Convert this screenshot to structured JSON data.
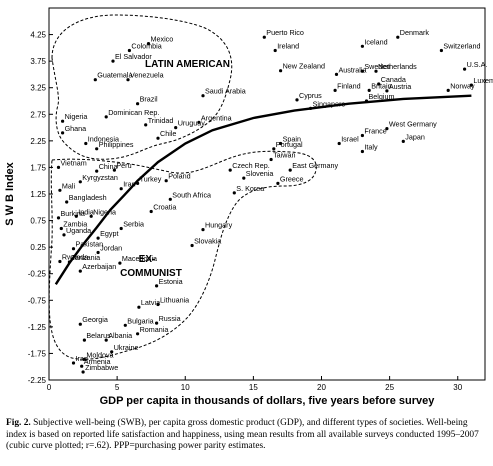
{
  "figure": {
    "caption_label": "Fig. 2.",
    "caption_text": "Subjective well-being (SWB), per capita gross domestic product (GDP), and different types of societies. Well-being index is based on reported life satisfaction and happiness, using mean results from all available surveys conducted 1995–2007 (cubic curve plotted; r=.62). PPP=purchasing power parity estimates."
  },
  "chart_data": {
    "type": "scatter",
    "xlabel": "GDP per capita in thousands of dollars, five years before survey",
    "ylabel": "S W B  Index",
    "xlim": [
      0,
      32
    ],
    "ylim": [
      -2.25,
      4.75
    ],
    "x_ticks": [
      "0",
      "5",
      "10",
      "15",
      "20",
      "25",
      "30"
    ],
    "y_ticks": [
      "-2.25",
      "-1.75",
      "-1.25",
      "-0.75",
      "-0.25",
      "0.25",
      "0.75",
      "1.25",
      "1.75",
      "2.25",
      "2.75",
      "3.25",
      "3.75",
      "4.25"
    ],
    "grid": false,
    "region_labels": [
      "LATIN AMERICAN",
      "EX-COMMUNIST"
    ],
    "curve": {
      "fit": "cubic",
      "r": 0.62,
      "x": [
        0.5,
        1.5,
        2.5,
        3.5,
        4.5,
        5.5,
        6.5,
        8,
        10,
        12,
        15,
        18,
        22,
        26,
        31
      ],
      "y": [
        -0.45,
        -0.05,
        0.3,
        0.62,
        0.95,
        1.22,
        1.5,
        1.85,
        2.2,
        2.45,
        2.68,
        2.82,
        2.95,
        3.04,
        3.1
      ]
    },
    "points": [
      {
        "label": "Puerto Rico",
        "x": 15.8,
        "y": 4.2
      },
      {
        "label": "Ireland",
        "x": 16.6,
        "y": 3.95
      },
      {
        "label": "Iceland",
        "x": 23.0,
        "y": 4.03
      },
      {
        "label": "Denmark",
        "x": 25.6,
        "y": 4.2
      },
      {
        "label": "Switzerland",
        "x": 28.8,
        "y": 3.95
      },
      {
        "label": "U.S.A.",
        "x": 30.5,
        "y": 3.6
      },
      {
        "label": "Luxembourg",
        "x": 31.0,
        "y": 3.3
      },
      {
        "label": "Norway",
        "x": 29.3,
        "y": 3.2
      },
      {
        "label": "Sweden",
        "x": 23.0,
        "y": 3.56
      },
      {
        "label": "Netherlands",
        "x": 24.0,
        "y": 3.56
      },
      {
        "label": "Canada",
        "x": 24.2,
        "y": 3.32
      },
      {
        "label": "Australia",
        "x": 21.1,
        "y": 3.5
      },
      {
        "label": "Finland",
        "x": 21.0,
        "y": 3.2
      },
      {
        "label": "Britain",
        "x": 23.5,
        "y": 3.2
      },
      {
        "label": "Austria",
        "x": 24.8,
        "y": 3.19
      },
      {
        "label": "Belgium",
        "x": 23.3,
        "y": 3.0
      },
      {
        "label": "New Zealand",
        "x": 17.0,
        "y": 3.57
      },
      {
        "label": "Cyprus",
        "x": 18.2,
        "y": 3.02
      },
      {
        "label": "Singapore",
        "x": 19.2,
        "y": 2.86
      },
      {
        "label": "Colombia",
        "x": 5.9,
        "y": 3.95
      },
      {
        "label": "Mexico",
        "x": 7.3,
        "y": 4.08
      },
      {
        "label": "El Salvador",
        "x": 4.7,
        "y": 3.75
      },
      {
        "label": "Venezuela",
        "x": 5.8,
        "y": 3.4
      },
      {
        "label": "Guatemala",
        "x": 3.4,
        "y": 3.4
      },
      {
        "label": "Saudi Arabia",
        "x": 11.3,
        "y": 3.1
      },
      {
        "label": "Brazil",
        "x": 6.5,
        "y": 2.95
      },
      {
        "label": "Argentina",
        "x": 11.0,
        "y": 2.6
      },
      {
        "label": "Dominican Rep.",
        "x": 4.2,
        "y": 2.7
      },
      {
        "label": "Nigeria",
        "x": 1.0,
        "y": 2.62
      },
      {
        "label": "Ghana",
        "x": 1.0,
        "y": 2.4
      },
      {
        "label": "Indonesia",
        "x": 2.7,
        "y": 2.2
      },
      {
        "label": "Trinidad",
        "x": 7.1,
        "y": 2.55
      },
      {
        "label": "Uruguay",
        "x": 9.3,
        "y": 2.5
      },
      {
        "label": "Chile",
        "x": 8.0,
        "y": 2.3
      },
      {
        "label": "Philippines",
        "x": 3.5,
        "y": 2.1
      },
      {
        "label": "Taiwan",
        "x": 16.3,
        "y": 1.9
      },
      {
        "label": "Portugal",
        "x": 16.5,
        "y": 2.1
      },
      {
        "label": "Spain",
        "x": 17.0,
        "y": 2.2
      },
      {
        "label": "Israel",
        "x": 21.3,
        "y": 2.2
      },
      {
        "label": "France",
        "x": 23.0,
        "y": 2.35
      },
      {
        "label": "West Germany",
        "x": 24.8,
        "y": 2.48
      },
      {
        "label": "Italy",
        "x": 23.0,
        "y": 2.05
      },
      {
        "label": "Japan",
        "x": 26.0,
        "y": 2.24
      },
      {
        "label": "Czech Rep.",
        "x": 13.3,
        "y": 1.7
      },
      {
        "label": "Slovenia",
        "x": 14.3,
        "y": 1.55
      },
      {
        "label": "East Germany",
        "x": 17.7,
        "y": 1.7
      },
      {
        "label": "Greece",
        "x": 16.8,
        "y": 1.45
      },
      {
        "label": "S. Korea",
        "x": 13.6,
        "y": 1.27
      },
      {
        "label": "Vietnam",
        "x": 0.7,
        "y": 1.75
      },
      {
        "label": "Kyrgyzstan",
        "x": 2.3,
        "y": 1.48
      },
      {
        "label": "Mali",
        "x": 0.8,
        "y": 1.32
      },
      {
        "label": "China",
        "x": 3.5,
        "y": 1.68
      },
      {
        "label": "Peru",
        "x": 4.8,
        "y": 1.7
      },
      {
        "label": "Iran",
        "x": 5.3,
        "y": 1.35
      },
      {
        "label": "Turkey",
        "x": 6.5,
        "y": 1.45
      },
      {
        "label": "Poland",
        "x": 8.6,
        "y": 1.5
      },
      {
        "label": "South Africa",
        "x": 8.9,
        "y": 1.15
      },
      {
        "label": "Bangladesh",
        "x": 1.3,
        "y": 1.1
      },
      {
        "label": "Burkina",
        "x": 0.7,
        "y": 0.8
      },
      {
        "label": "India",
        "x": 2.0,
        "y": 0.83
      },
      {
        "label": "Nigeria",
        "x": 3.1,
        "y": 0.83
      },
      {
        "label": "Croatia",
        "x": 7.5,
        "y": 0.92
      },
      {
        "label": "Zambia",
        "x": 0.9,
        "y": 0.6
      },
      {
        "label": "Uganda",
        "x": 1.1,
        "y": 0.48
      },
      {
        "label": "Egypt",
        "x": 3.6,
        "y": 0.42
      },
      {
        "label": "Serbia",
        "x": 5.3,
        "y": 0.6
      },
      {
        "label": "Hungary",
        "x": 11.3,
        "y": 0.58
      },
      {
        "label": "Pakistan",
        "x": 1.8,
        "y": 0.22
      },
      {
        "label": "Jordan",
        "x": 3.6,
        "y": 0.15
      },
      {
        "label": "Slovakia",
        "x": 10.5,
        "y": 0.28
      },
      {
        "label": "Rwanda",
        "x": 0.8,
        "y": -0.02
      },
      {
        "label": "Tanzania",
        "x": 1.5,
        "y": -0.03
      },
      {
        "label": "Macedonia",
        "x": 5.2,
        "y": -0.05
      },
      {
        "label": "Azerbaijan",
        "x": 2.3,
        "y": -0.2
      },
      {
        "label": "Estonia",
        "x": 7.9,
        "y": -0.48
      },
      {
        "label": "Latvia",
        "x": 6.6,
        "y": -0.88
      },
      {
        "label": "Lithuania",
        "x": 8.0,
        "y": -0.83
      },
      {
        "label": "Georgia",
        "x": 2.3,
        "y": -1.2
      },
      {
        "label": "Bulgaria",
        "x": 5.6,
        "y": -1.22
      },
      {
        "label": "Russia",
        "x": 7.9,
        "y": -1.18
      },
      {
        "label": "Romania",
        "x": 6.5,
        "y": -1.38
      },
      {
        "label": "Albania",
        "x": 4.2,
        "y": -1.5
      },
      {
        "label": "Belarus",
        "x": 2.6,
        "y": -1.5
      },
      {
        "label": "Ukraine",
        "x": 4.6,
        "y": -1.72
      },
      {
        "label": "Moldova",
        "x": 2.6,
        "y": -1.86
      },
      {
        "label": "Iraq",
        "x": 1.8,
        "y": -1.93
      },
      {
        "label": "Armenia",
        "x": 2.4,
        "y": -1.99
      },
      {
        "label": "Zimbabwe",
        "x": 2.5,
        "y": -2.1
      }
    ]
  }
}
